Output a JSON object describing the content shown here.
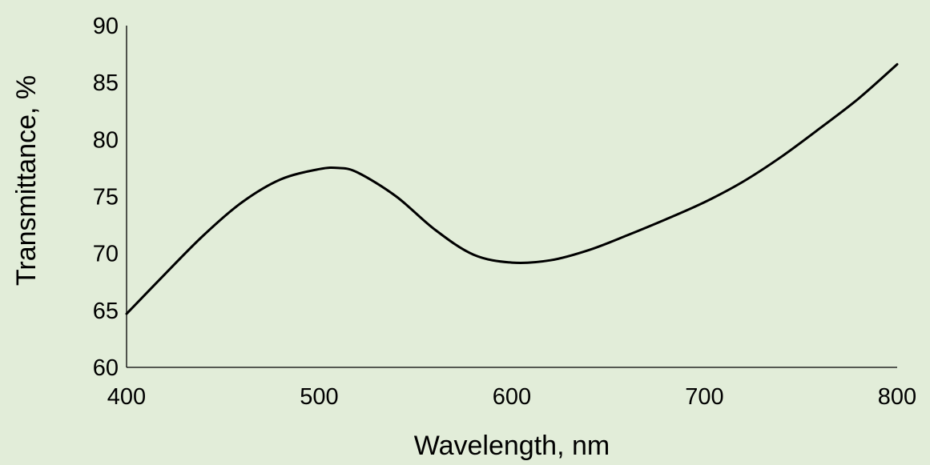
{
  "chart_data": {
    "type": "line",
    "title": "",
    "xlabel": "Wavelength, nm",
    "ylabel": "Transmittance, %",
    "xlim": [
      400,
      800
    ],
    "ylim": [
      60,
      90
    ],
    "x_ticks": [
      400,
      500,
      600,
      700,
      800
    ],
    "y_ticks": [
      60,
      65,
      70,
      75,
      80,
      85,
      90
    ],
    "grid": false,
    "legend": "none",
    "colors": {
      "background": "#e2edd9",
      "line": "#000000"
    },
    "series": [
      {
        "x": [
          400,
          420,
          440,
          460,
          480,
          500,
          510,
          520,
          540,
          560,
          580,
          600,
          620,
          640,
          660,
          680,
          700,
          720,
          740,
          760,
          780,
          800
        ],
        "y": [
          64.7,
          68.2,
          71.6,
          74.5,
          76.5,
          77.4,
          77.5,
          77.1,
          75.0,
          72.1,
          69.9,
          69.2,
          69.4,
          70.3,
          71.6,
          73.0,
          74.5,
          76.3,
          78.5,
          81.0,
          83.6,
          86.6
        ]
      }
    ]
  }
}
